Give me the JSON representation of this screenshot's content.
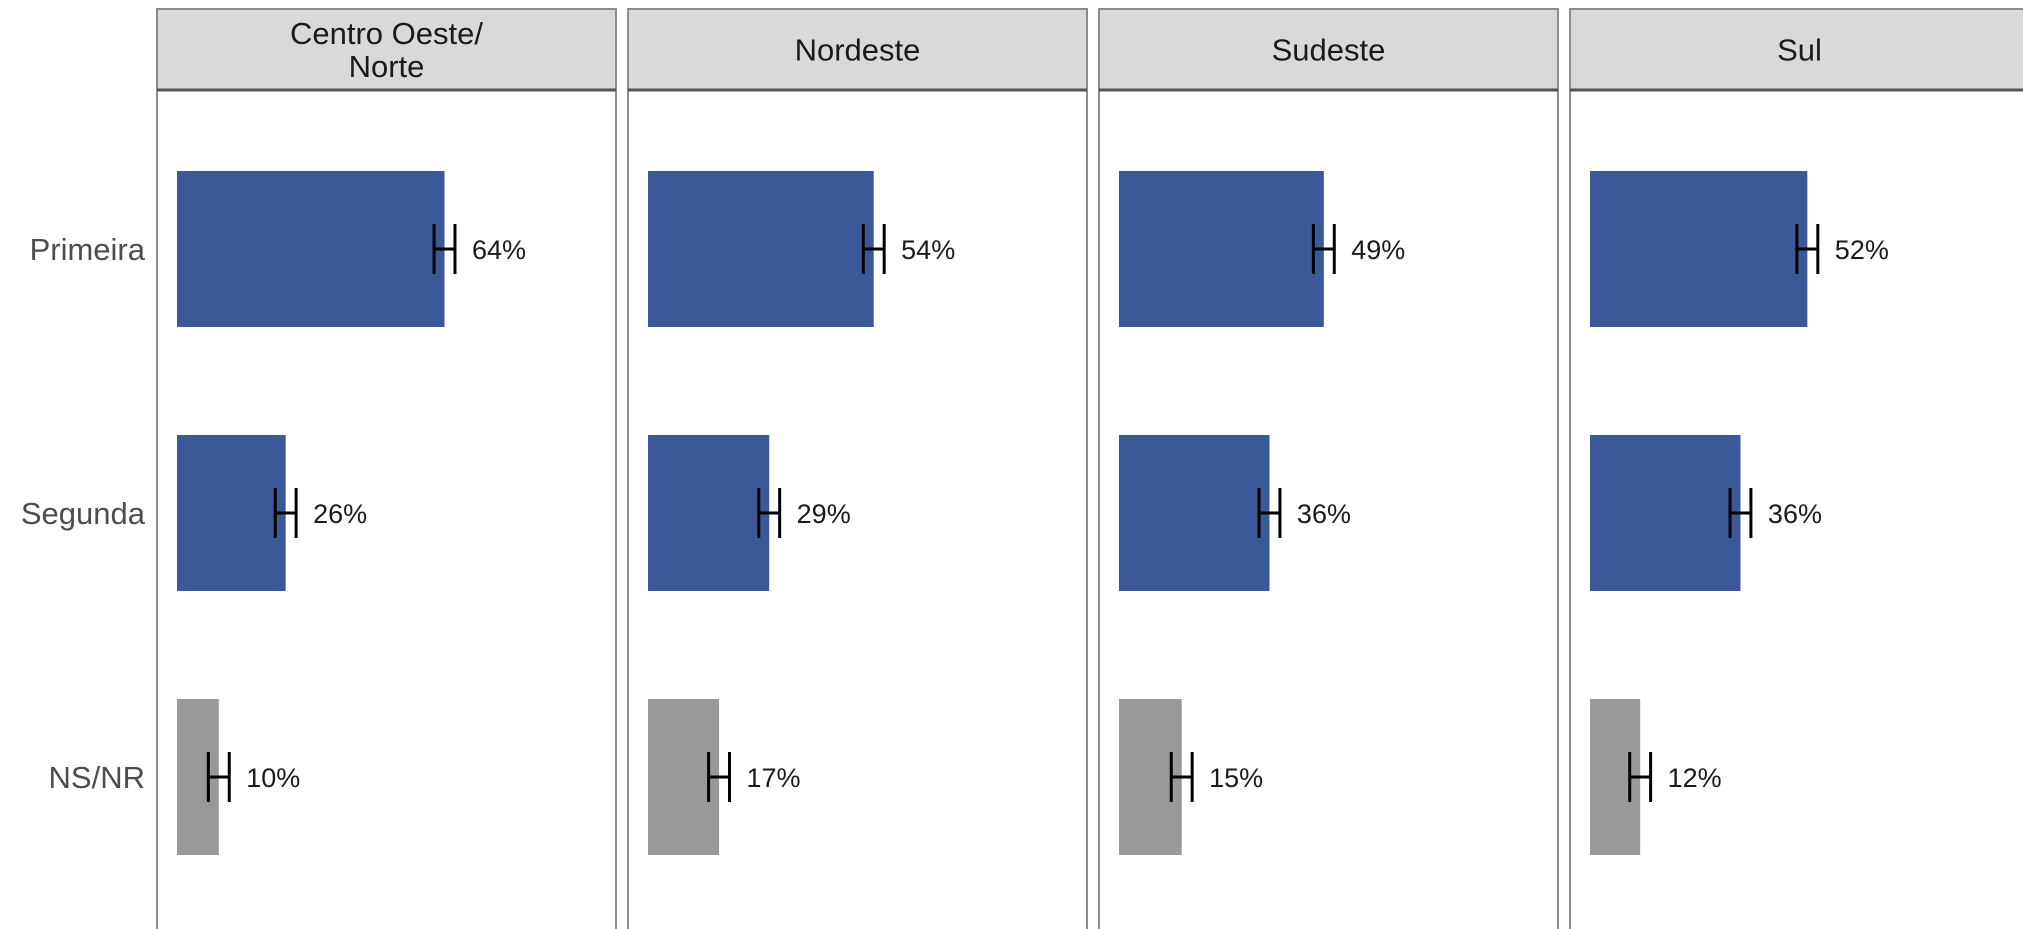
{
  "chart_data": {
    "type": "bar",
    "orientation": "horizontal",
    "facets": [
      "Centro Oeste/ Norte",
      "Nordeste",
      "Sudeste",
      "Sul"
    ],
    "categories": [
      "Primeira",
      "Segunda",
      "NS/NR"
    ],
    "panels": [
      {
        "facet": "Centro Oeste/ Norte",
        "values": [
          64,
          26,
          10
        ],
        "labels": [
          "64%",
          "26%",
          "10%"
        ],
        "error": [
          2.5,
          2.5,
          2.5
        ]
      },
      {
        "facet": "Nordeste",
        "values": [
          54,
          29,
          17
        ],
        "labels": [
          "54%",
          "29%",
          "17%"
        ],
        "error": [
          2.5,
          2.5,
          2.5
        ]
      },
      {
        "facet": "Sudeste",
        "values": [
          49,
          36,
          15
        ],
        "labels": [
          "49%",
          "36%",
          "15%"
        ],
        "error": [
          2.5,
          2.5,
          2.5
        ]
      },
      {
        "facet": "Sul",
        "values": [
          52,
          36,
          12
        ],
        "labels": [
          "52%",
          "36%",
          "12%"
        ],
        "error": [
          2.5,
          2.5,
          2.5
        ]
      }
    ],
    "xlim": [
      0,
      110
    ],
    "grid": false,
    "legend": "none",
    "colors": {
      "Primeira": "#3b5998",
      "Segunda": "#3b5998",
      "NS/NR": "#999999",
      "strip": "#d9d9d9",
      "strip_border": "#555555",
      "panel_border": "#8c8c8c"
    }
  }
}
